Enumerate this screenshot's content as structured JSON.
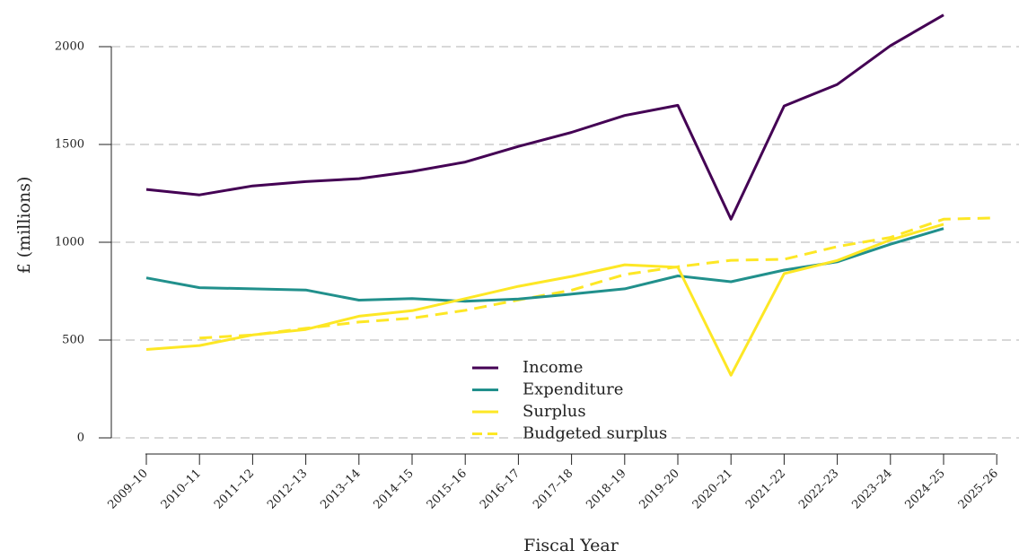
{
  "chart_data": {
    "type": "line",
    "xlabel": "Fiscal Year",
    "ylabel": "£ (millions)",
    "categories": [
      "2009–10",
      "2010–11",
      "2011–12",
      "2012–13",
      "2013–14",
      "2014–15",
      "2015–16",
      "2016–17",
      "2017–18",
      "2018–19",
      "2019–20",
      "2020–21",
      "2021–22",
      "2022–23",
      "2023–24",
      "2024–25",
      "2025–26"
    ],
    "yticks": [
      0,
      500,
      1000,
      1500,
      2000
    ],
    "ytick_labels": [
      "0",
      "500",
      "1000",
      "1500",
      "2000"
    ],
    "ylim": [
      0,
      2150
    ],
    "grid": "horizontal dashed",
    "legend_position": "bottom-center",
    "series": [
      {
        "name": "Income",
        "color": "#440154",
        "dash": "solid",
        "values": [
          1270,
          1242,
          1288,
          1310,
          1325,
          1362,
          1410,
          1490,
          1562,
          1648,
          1700,
          1118,
          1697,
          1807,
          2005,
          2162,
          null
        ]
      },
      {
        "name": "Expenditure",
        "color": "#21908C",
        "dash": "solid",
        "values": [
          818,
          768,
          762,
          756,
          704,
          712,
          698,
          710,
          735,
          762,
          828,
          798,
          858,
          900,
          990,
          1070,
          null
        ]
      },
      {
        "name": "Surplus",
        "color": "#FDE725",
        "dash": "solid",
        "values": [
          452,
          472,
          526,
          554,
          622,
          650,
          712,
          775,
          825,
          885,
          872,
          320,
          840,
          907,
          1012,
          1092,
          null
        ]
      },
      {
        "name": "Budgeted surplus",
        "color": "#FDE725",
        "dash": "dashed",
        "values": [
          null,
          510,
          526,
          560,
          592,
          612,
          652,
          705,
          755,
          835,
          875,
          908,
          913,
          978,
          1025,
          1118,
          1125
        ]
      }
    ]
  }
}
